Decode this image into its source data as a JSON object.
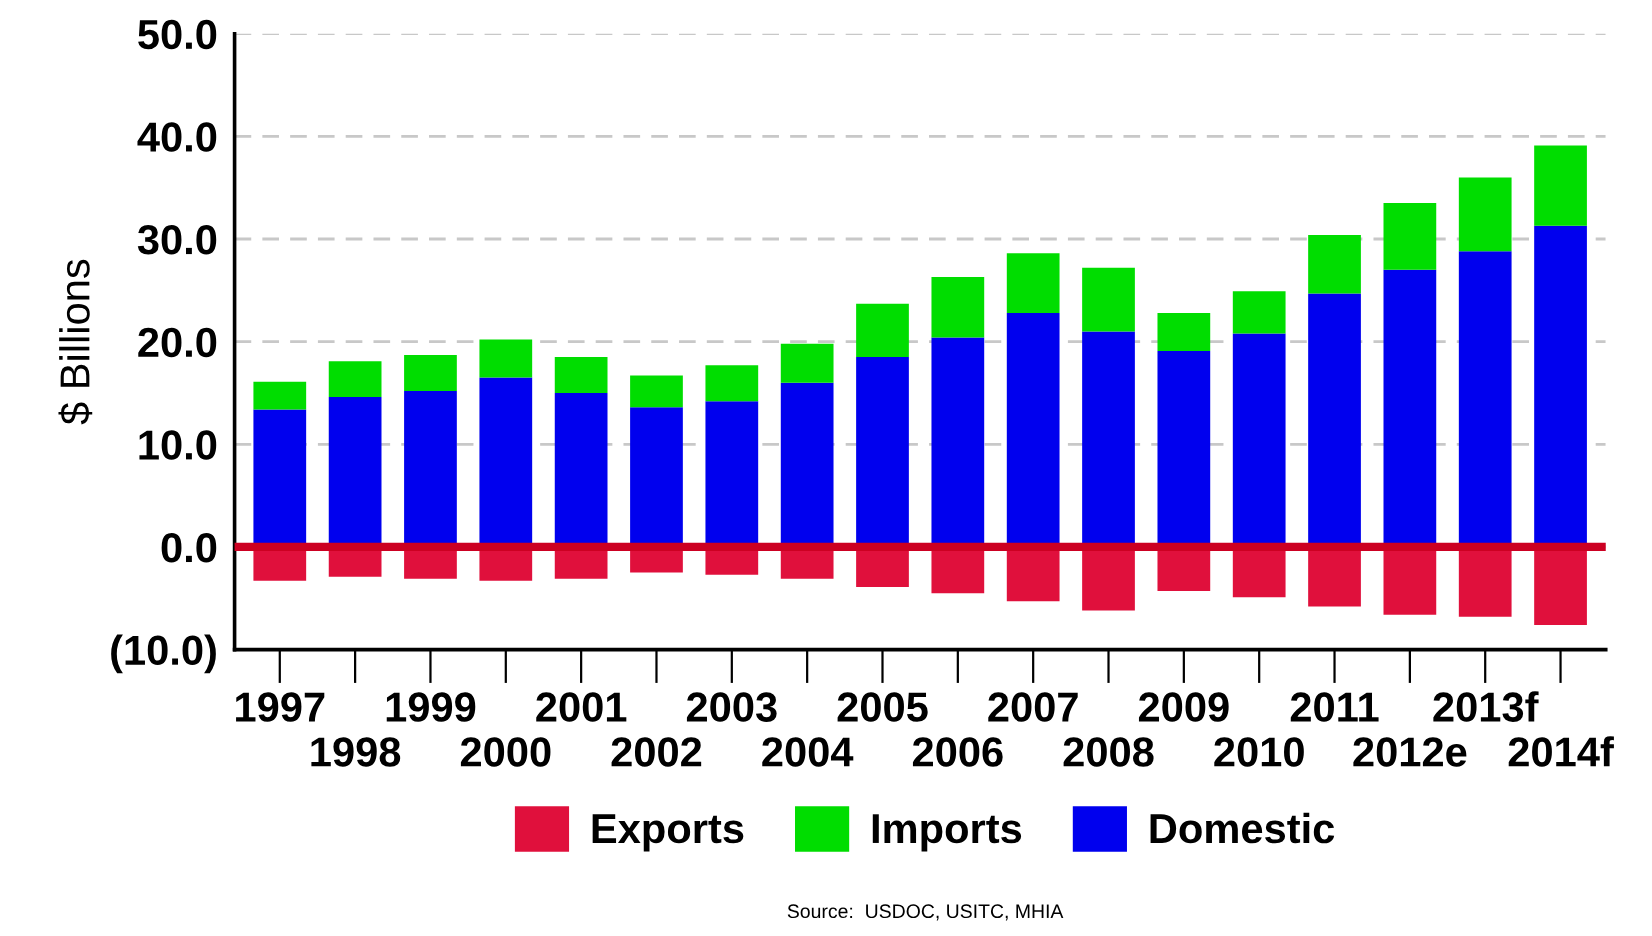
{
  "chart_data": {
    "type": "bar",
    "stacked": true,
    "ylabel": "$ Billions",
    "categories": [
      "1997",
      "1998",
      "1999",
      "2000",
      "2001",
      "2002",
      "2003",
      "2004",
      "2005",
      "2006",
      "2007",
      "2008",
      "2009",
      "2010",
      "2011",
      "2012e",
      "2013f",
      "2014f"
    ],
    "series": [
      {
        "name": "Domestic",
        "color": "#0000ee",
        "values": [
          13.4,
          14.6,
          15.2,
          16.5,
          15.0,
          13.6,
          14.2,
          16.0,
          18.5,
          20.4,
          22.8,
          21.0,
          19.1,
          20.8,
          24.7,
          27.0,
          28.8,
          31.3
        ]
      },
      {
        "name": "Imports",
        "color": "#00dd00",
        "values": [
          2.7,
          3.5,
          3.5,
          3.7,
          3.5,
          3.1,
          3.5,
          3.8,
          5.2,
          5.9,
          5.8,
          6.2,
          3.7,
          4.1,
          5.7,
          6.5,
          7.2,
          7.8
        ]
      },
      {
        "name": "Exports",
        "color": "#e0103c",
        "values": [
          -3.3,
          -2.9,
          -3.1,
          -3.3,
          -3.1,
          -2.5,
          -2.7,
          -3.1,
          -3.9,
          -4.5,
          -5.3,
          -6.2,
          -4.3,
          -4.9,
          -5.8,
          -6.6,
          -6.8,
          -7.6
        ]
      }
    ],
    "ylim": [
      -10,
      50
    ],
    "yticks": [
      {
        "value": -10,
        "label": "(10.0)"
      },
      {
        "value": 0,
        "label": "0.0"
      },
      {
        "value": 10,
        "label": "10.0"
      },
      {
        "value": 20,
        "label": "20.0"
      },
      {
        "value": 30,
        "label": "30.0"
      },
      {
        "value": 40,
        "label": "40.0"
      },
      {
        "value": 50,
        "label": "50.0"
      }
    ],
    "grid": "y",
    "legend": "bottom",
    "ref_lines": [
      {
        "axis": "y",
        "value": 0,
        "color": "#cc0022",
        "line_style": "solid"
      }
    ],
    "annotations": [
      "Source:  USDOC, USITC, MHIA"
    ]
  }
}
